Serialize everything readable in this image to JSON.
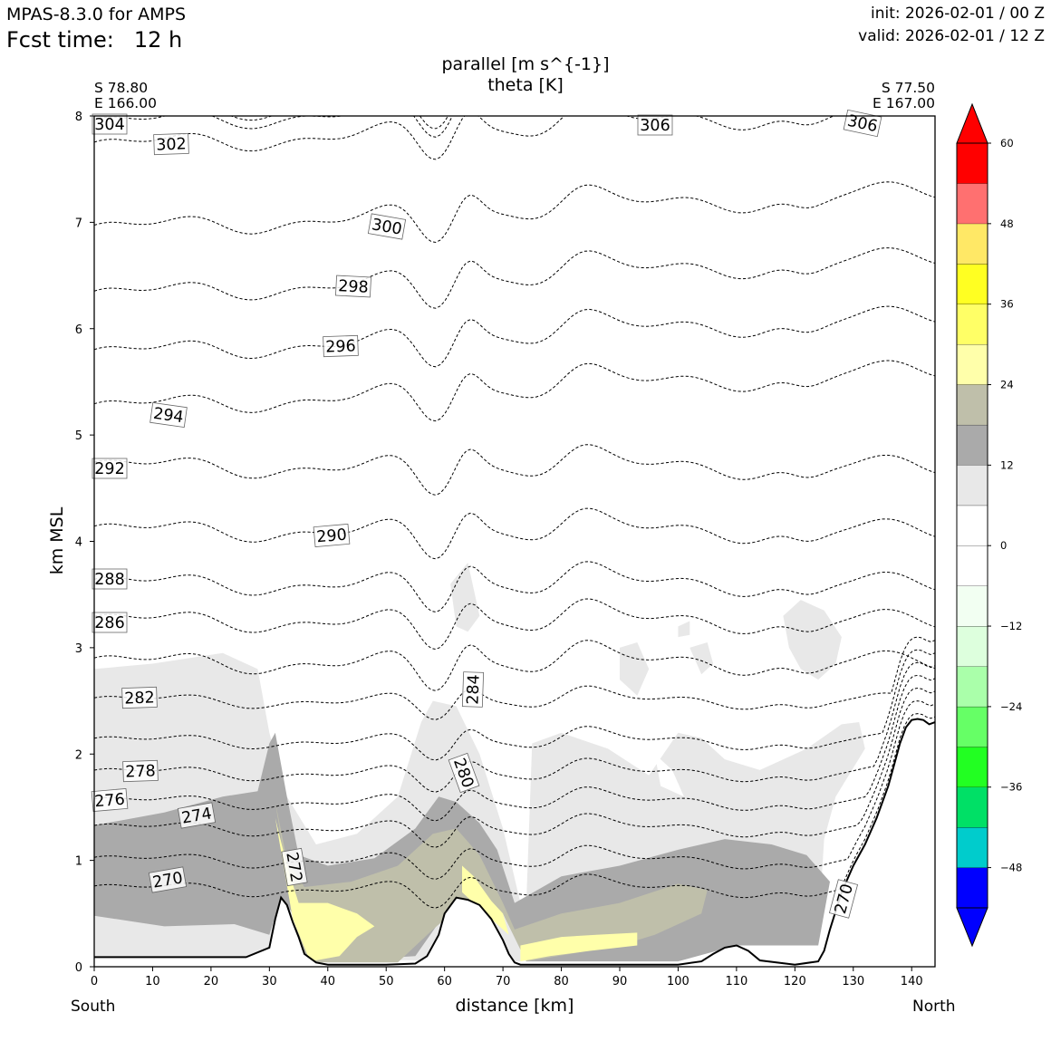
{
  "header": {
    "model": "MPAS-8.3.0 for AMPS",
    "fcst_label": "Fcst time:",
    "fcst_value": "12 h",
    "init": "init: 2026-02-01 / 00 Z",
    "valid": "valid: 2026-02-01 / 12 Z"
  },
  "endpoints": {
    "left_lat": "S 78.80",
    "left_lon": "E 166.00",
    "right_lat": "S 77.50",
    "right_lon": "E 167.00",
    "left_dir": "South",
    "right_dir": "North"
  },
  "chart_data": {
    "type": "contour",
    "title": "parallel [m s^{-1}]",
    "subtitle": "theta [K]",
    "xlabel": "distance [km]",
    "ylabel": "km MSL",
    "xlim": [
      0,
      144
    ],
    "ylim": [
      0,
      8
    ],
    "x_ticks": [
      "0",
      "10",
      "20",
      "30",
      "40",
      "50",
      "60",
      "70",
      "80",
      "90",
      "100",
      "110",
      "120",
      "130",
      "140"
    ],
    "y_ticks": [
      "0",
      "1",
      "2",
      "3",
      "4",
      "5",
      "6",
      "7",
      "8"
    ],
    "colorbar": {
      "levels": [
        -54,
        -48,
        -42,
        -36,
        -30,
        -24,
        -18,
        -12,
        -6,
        0,
        6,
        12,
        18,
        24,
        30,
        36,
        42,
        48,
        54,
        60
      ],
      "tick_labels": [
        "60",
        "48",
        "36",
        "24",
        "12",
        "0",
        "−12",
        "−24",
        "−36",
        "−48"
      ],
      "colors": [
        "#0000ff",
        "#00cccc",
        "#00e066",
        "#22ff22",
        "#66ff66",
        "#aaffaa",
        "#ddffdd",
        "#f2fff2",
        "#ffffff",
        "#ffffff",
        "#e8e8e8",
        "#aaaaaa",
        "#bfbfaa",
        "#ffffaa",
        "#ffff66",
        "#ffff22",
        "#ffe866",
        "#ff7070",
        "#ff0000"
      ],
      "extend": "both",
      "under_color": "#0000ff",
      "over_color": "#ff0000"
    },
    "terrain": {
      "x": [
        0,
        26,
        30,
        31,
        32,
        33,
        34,
        35,
        36,
        38,
        40,
        45,
        50,
        55,
        57,
        59,
        60,
        62,
        64,
        66,
        68,
        70,
        71,
        72,
        73,
        75,
        80,
        90,
        100,
        104,
        106,
        108,
        110,
        112,
        114,
        120,
        124,
        125,
        126,
        128,
        130,
        132,
        134,
        136,
        137,
        138,
        139,
        140,
        141,
        142,
        143,
        144
      ],
      "z": [
        0.09,
        0.09,
        0.18,
        0.45,
        0.65,
        0.58,
        0.42,
        0.28,
        0.12,
        0.04,
        0.02,
        0.02,
        0.02,
        0.03,
        0.1,
        0.3,
        0.5,
        0.65,
        0.63,
        0.58,
        0.45,
        0.25,
        0.12,
        0.04,
        0.02,
        0.02,
        0.02,
        0.02,
        0.02,
        0.05,
        0.12,
        0.18,
        0.2,
        0.15,
        0.06,
        0.02,
        0.05,
        0.15,
        0.35,
        0.7,
        0.95,
        1.15,
        1.4,
        1.7,
        1.9,
        2.1,
        2.25,
        2.32,
        2.33,
        2.32,
        2.28,
        2.3
      ]
    },
    "wind_fill": [
      {
        "level": "6-12",
        "color": "#e8e8e8",
        "region": "broad shading 0-3 km from 0-70 km and 75-130 km, isolated patches above 3 km near 62-66 km and 90-130 km"
      },
      {
        "level": "12-18",
        "color": "#aaaaaa",
        "region": "low-level layer 0.4-1.3 km from 0-30 km, wedge along 30-38 km slope, 0.6-1.6 km from 55-70 km, 0.5-1.2 km from 75-126 km"
      },
      {
        "level": "18-24",
        "color": "#bfbfaa",
        "region": "near-surface 0-0.9 km from 33-70 km, 0.2-0.8 km from 72-105 km"
      },
      {
        "level": "24-30",
        "color": "#ffffaa",
        "region": "pockets near 34-48 km and 63-70 km (0.1-0.9 km), 73-93 km (0.1-0.3 km)"
      }
    ],
    "theta_contours": [
      {
        "value": 270,
        "label": "270",
        "y_at_0_km": 0.73
      },
      {
        "value": 272,
        "label": "272",
        "y_at_0_km": 1.0
      },
      {
        "value": 274,
        "label": "274",
        "y_at_0_km": 1.3
      },
      {
        "value": 276,
        "label": "276",
        "y_at_0_km": 1.55
      },
      {
        "value": 278,
        "label": "278",
        "y_at_0_km": 1.82
      },
      {
        "value": 280,
        "label": "280",
        "y_at_0_km": 2.12
      },
      {
        "value": 282,
        "label": "282",
        "y_at_0_km": 2.5
      },
      {
        "value": 284,
        "label": "284",
        "y_at_0_km": 2.86
      },
      {
        "value": 286,
        "label": "286",
        "y_at_0_km": 3.25
      },
      {
        "value": 288,
        "label": "288",
        "y_at_0_km": 3.6
      },
      {
        "value": 290,
        "label": "290",
        "y_at_0_km": 4.1
      },
      {
        "value": 292,
        "label": "292",
        "y_at_0_km": 4.7
      },
      {
        "value": 294,
        "label": "294",
        "y_at_0_km": 5.25
      },
      {
        "value": 296,
        "label": "296",
        "y_at_0_km": 5.76
      },
      {
        "value": 298,
        "label": "298",
        "y_at_0_km": 6.31
      },
      {
        "value": 300,
        "label": "300",
        "y_at_0_km": 6.93
      },
      {
        "value": 302,
        "label": "302",
        "y_at_0_km": 7.71
      },
      {
        "value": 304,
        "label": "304",
        "y_at_0_km": 7.92
      },
      {
        "value": 306,
        "label": "306",
        "y_at_0_km": 8.0
      }
    ]
  }
}
